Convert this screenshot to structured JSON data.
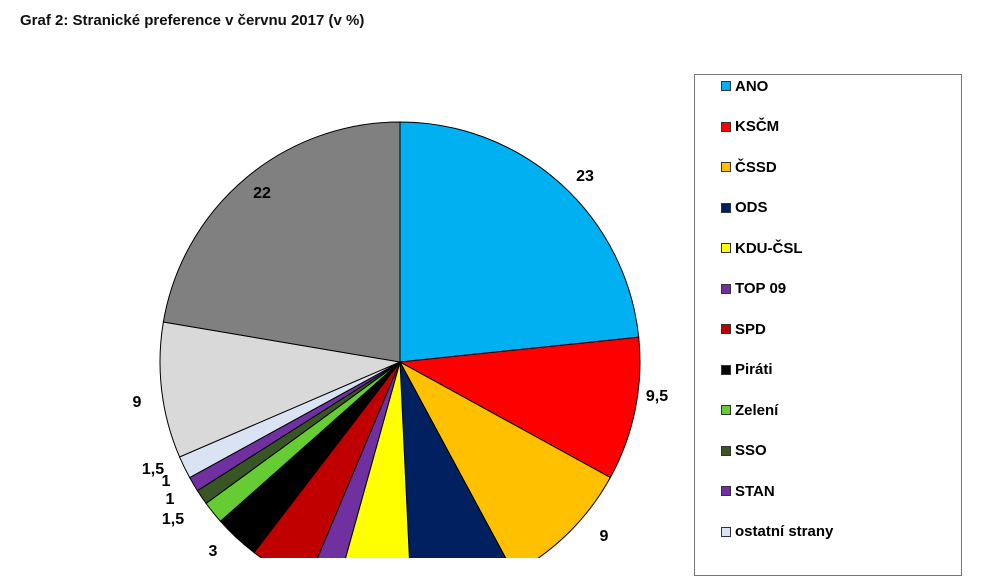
{
  "title": "Graf 2: Stranické preference v červnu 2017 (v %)",
  "chart_data": {
    "type": "pie",
    "title": "Graf 2: Stranické preference v červnu 2017 (v %)",
    "slices": [
      {
        "name": "ANO",
        "value": 23,
        "label": "23",
        "color": "#00b0f0"
      },
      {
        "name": "KSČM",
        "value": 9.5,
        "label": "9,5",
        "color": "#ff0000"
      },
      {
        "name": "ČSSD",
        "value": 9,
        "label": "9",
        "color": "#ffc000"
      },
      {
        "name": "ODS",
        "value": 7,
        "label": "",
        "color": "#002060"
      },
      {
        "name": "KDU-ČSL",
        "value": 5,
        "label": "",
        "color": "#ffff00"
      },
      {
        "name": "TOP 09",
        "value": 2,
        "label": "",
        "color": "#7030a0"
      },
      {
        "name": "SPD",
        "value": 4,
        "label": "",
        "color": "#c00000"
      },
      {
        "name": "Piráti",
        "value": 3,
        "label": "3",
        "color": "#000000"
      },
      {
        "name": "Zelení",
        "value": 1.5,
        "label": "1,5",
        "color": "#66cc33"
      },
      {
        "name": "SSO",
        "value": 1,
        "label": "1",
        "color": "#375623"
      },
      {
        "name": "STAN",
        "value": 1,
        "label": "1",
        "color": "#7030a0"
      },
      {
        "name": "ostatní strany",
        "value": 1.5,
        "label": "1,5",
        "color": "#dae3f3"
      },
      {
        "name": "",
        "value": 9,
        "label": "9",
        "color": "#d9d9d9"
      },
      {
        "name": "",
        "value": 22,
        "label": "22",
        "color": "#808080"
      }
    ]
  },
  "legend": [
    {
      "label": "ANO",
      "color": "#00b0f0"
    },
    {
      "label": "KSČM",
      "color": "#ff0000"
    },
    {
      "label": "ČSSD",
      "color": "#ffc000"
    },
    {
      "label": "ODS",
      "color": "#002060"
    },
    {
      "label": "KDU-ČSL",
      "color": "#ffff00"
    },
    {
      "label": "TOP 09",
      "color": "#7030a0"
    },
    {
      "label": "SPD",
      "color": "#c00000"
    },
    {
      "label": "Piráti",
      "color": "#000000"
    },
    {
      "label": "Zelení",
      "color": "#66cc33"
    },
    {
      "label": "SSO",
      "color": "#375623"
    },
    {
      "label": "STAN",
      "color": "#7030a0"
    },
    {
      "label": "ostatní strany",
      "color": "#dae3f3"
    }
  ]
}
